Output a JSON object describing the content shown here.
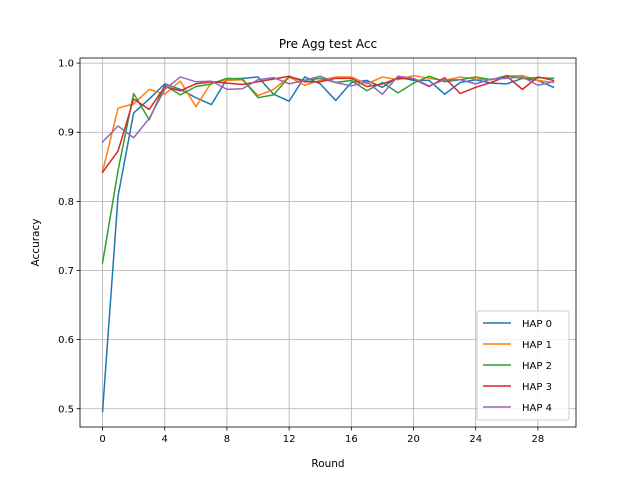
{
  "chart_data": {
    "type": "line",
    "title": "Pre Agg test Acc",
    "xlabel": "Round",
    "ylabel": "Accuracy",
    "xlim": [
      -1.45,
      30.45
    ],
    "ylim": [
      0.4736,
      1.0074
    ],
    "xticks": [
      0,
      4,
      8,
      12,
      16,
      20,
      24,
      28
    ],
    "yticks": [
      0.5,
      0.6,
      0.7,
      0.8,
      0.9,
      1.0
    ],
    "ytick_labels": [
      "0.5",
      "0.6",
      "0.7",
      "0.8",
      "0.9",
      "1.0"
    ],
    "grid": true,
    "legend_position": "lower-right",
    "x": [
      0,
      1,
      2,
      3,
      4,
      5,
      6,
      7,
      8,
      9,
      10,
      11,
      12,
      13,
      14,
      15,
      16,
      17,
      18,
      19,
      20,
      21,
      22,
      23,
      24,
      25,
      26,
      27,
      28,
      29
    ],
    "series": [
      {
        "name": "HAP 0",
        "color": "#1f77b4",
        "values": [
          0.496,
          0.808,
          0.928,
          0.948,
          0.97,
          0.962,
          0.95,
          0.94,
          0.977,
          0.978,
          0.98,
          0.955,
          0.945,
          0.98,
          0.97,
          0.946,
          0.972,
          0.975,
          0.965,
          0.98,
          0.975,
          0.975,
          0.955,
          0.972,
          0.976,
          0.971,
          0.97,
          0.978,
          0.975,
          0.965
        ]
      },
      {
        "name": "HAP 1",
        "color": "#ff7f0e",
        "values": [
          0.843,
          0.935,
          0.941,
          0.962,
          0.955,
          0.974,
          0.937,
          0.972,
          0.975,
          0.976,
          0.953,
          0.962,
          0.98,
          0.968,
          0.975,
          0.98,
          0.98,
          0.97,
          0.98,
          0.976,
          0.982,
          0.978,
          0.975,
          0.98,
          0.977,
          0.976,
          0.981,
          0.982,
          0.975,
          0.972
        ]
      },
      {
        "name": "HAP 2",
        "color": "#2ca02c",
        "values": [
          0.711,
          0.845,
          0.956,
          0.918,
          0.968,
          0.954,
          0.966,
          0.97,
          0.978,
          0.977,
          0.95,
          0.954,
          0.98,
          0.975,
          0.978,
          0.972,
          0.975,
          0.96,
          0.972,
          0.957,
          0.971,
          0.981,
          0.973,
          0.976,
          0.98,
          0.976,
          0.982,
          0.978,
          0.979,
          0.978
        ]
      },
      {
        "name": "HAP 3",
        "color": "#d62728",
        "values": [
          0.842,
          0.873,
          0.948,
          0.933,
          0.966,
          0.96,
          0.97,
          0.973,
          0.971,
          0.969,
          0.973,
          0.977,
          0.981,
          0.973,
          0.973,
          0.978,
          0.978,
          0.966,
          0.97,
          0.978,
          0.977,
          0.966,
          0.979,
          0.956,
          0.965,
          0.972,
          0.981,
          0.962,
          0.98,
          0.975
        ]
      },
      {
        "name": "HAP 4",
        "color": "#9467bd",
        "values": [
          0.886,
          0.909,
          0.892,
          0.92,
          0.962,
          0.98,
          0.973,
          0.974,
          0.962,
          0.963,
          0.976,
          0.979,
          0.97,
          0.975,
          0.981,
          0.972,
          0.967,
          0.973,
          0.955,
          0.981,
          0.978,
          0.967,
          0.976,
          0.976,
          0.97,
          0.977,
          0.978,
          0.98,
          0.968,
          0.973
        ]
      }
    ]
  }
}
